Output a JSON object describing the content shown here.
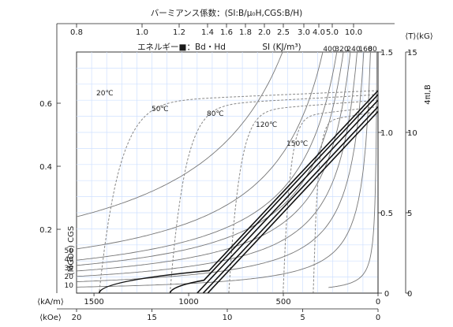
{
  "chart_data": {
    "type": "line",
    "title": "バーミアンス係数：(SI:B/μ₀H,CGS:B/H)",
    "subtitle_left": "エネルギー■：Bd・Hd",
    "subtitle_right": "SI (KJ/m³)",
    "top_axis": {
      "unit": "⟨T⟩⟨kG⟩",
      "ticks": [
        "0.8",
        "1.0",
        "1.2",
        "1.4",
        "1.6",
        "1.8",
        "2.0",
        "2.5",
        "3.0",
        "4.0",
        "5.0",
        "10.0"
      ],
      "energy_ticks": [
        "400",
        "320",
        "240",
        "160",
        "80"
      ]
    },
    "left_axis": {
      "label": "(MGOe) CGS",
      "ticks": [
        "0.2",
        "0.4",
        "0.6"
      ],
      "energy_ticks": [
        "10",
        "20",
        "30",
        "40",
        "50"
      ]
    },
    "right_axis": {
      "label": "4πI,B",
      "ticks_T": [
        "0",
        "0.5",
        "1.0",
        "1.5"
      ],
      "ticks_kG": [
        "0",
        "5",
        "10",
        "15"
      ],
      "range_T": [
        0,
        1.5
      ]
    },
    "bottom_axis_kAm": {
      "unit": "⟨kA/m⟩",
      "ticks": [
        "1500",
        "1000",
        "500",
        "0"
      ],
      "range": [
        1592,
        0
      ]
    },
    "bottom_axis_kOe": {
      "unit": "⟨kOe⟩",
      "ticks": [
        "20",
        "15",
        "10",
        "5",
        "0"
      ],
      "range": [
        20,
        0
      ]
    },
    "series": [
      {
        "name": "20℃",
        "type": "intrinsic",
        "hcj_kOe": 18.5,
        "br_T": 1.26
      },
      {
        "name": "50℃",
        "type": "intrinsic",
        "hcj_kOe": 13.8,
        "br_T": 1.235
      },
      {
        "name": "80℃",
        "type": "intrinsic",
        "hcj_kOe": 9.9,
        "br_T": 1.2
      },
      {
        "name": "120℃",
        "type": "intrinsic",
        "hcj_kOe": 6.3,
        "br_T": 1.16
      },
      {
        "name": "150℃",
        "type": "intrinsic",
        "hcj_kOe": 4.3,
        "br_T": 1.13
      }
    ],
    "demagnetization_lines": [
      {
        "br_T": 1.26,
        "knee_T": 0.14
      },
      {
        "br_T": 1.235,
        "knee_T": 0.08
      },
      {
        "br_T": 1.2,
        "knee_T": 0.05
      },
      {
        "br_T": 1.16,
        "knee_T": 0.27
      },
      {
        "br_T": 1.13,
        "knee_T": 0.53
      }
    ],
    "grid": true
  }
}
